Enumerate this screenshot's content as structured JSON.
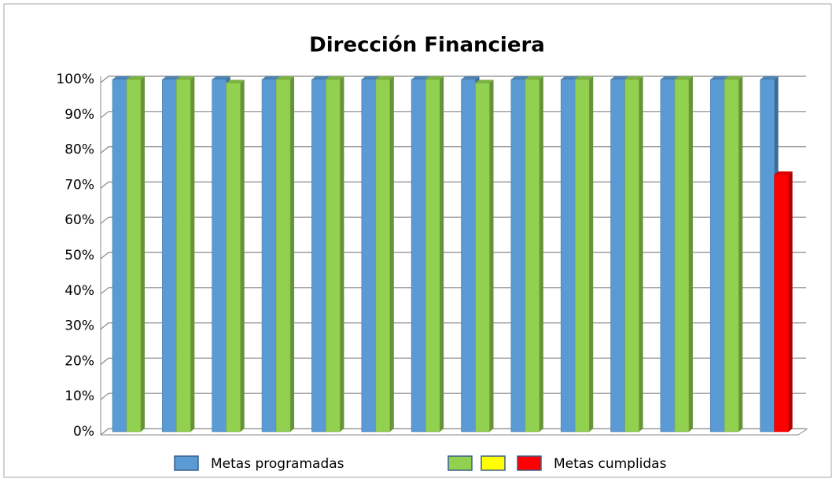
{
  "chart_data": {
    "type": "bar3d",
    "title": "Dirección Financiera",
    "categories": [
      null,
      null,
      null,
      null,
      null,
      null,
      null,
      null,
      null,
      null,
      null,
      null,
      null,
      null
    ],
    "series": [
      {
        "name": "Metas programadas",
        "color": "#5b9bd5",
        "values": [
          100,
          100,
          100,
          100,
          100,
          100,
          100,
          100,
          100,
          100,
          100,
          100,
          100,
          100
        ]
      },
      {
        "name": "Metas cumplidas",
        "color": "#ff0000",
        "colors": [
          "#92d050",
          "#92d050",
          "#92d050",
          "#92d050",
          "#92d050",
          "#92d050",
          "#92d050",
          "#92d050",
          "#92d050",
          "#92d050",
          "#92d050",
          "#92d050",
          "#92d050",
          "#ff0000"
        ],
        "values": [
          100,
          100,
          99,
          100,
          100,
          100,
          100,
          99,
          100,
          100,
          100,
          100,
          100,
          73
        ]
      }
    ],
    "legend": [
      {
        "name": "Metas programadas",
        "color": "#5b9bd5"
      },
      {
        "color": "#92d050"
      },
      {
        "color": "#ffff00"
      },
      {
        "name": "Metas cumplidas",
        "color": "#ff0000"
      }
    ],
    "ylim": [
      0,
      100
    ],
    "yticks": [
      {
        "value": 0,
        "label": "0%"
      },
      {
        "value": 10,
        "label": "10%"
      },
      {
        "value": 20,
        "label": "20%"
      },
      {
        "value": 30,
        "label": "30%"
      },
      {
        "value": 40,
        "label": "40%"
      },
      {
        "value": 50,
        "label": "50%"
      },
      {
        "value": 60,
        "label": "60%"
      },
      {
        "value": 70,
        "label": "70%"
      },
      {
        "value": 80,
        "label": "80%"
      },
      {
        "value": 90,
        "label": "90%"
      },
      {
        "value": 100,
        "label": "100%"
      }
    ],
    "grid": true
  }
}
